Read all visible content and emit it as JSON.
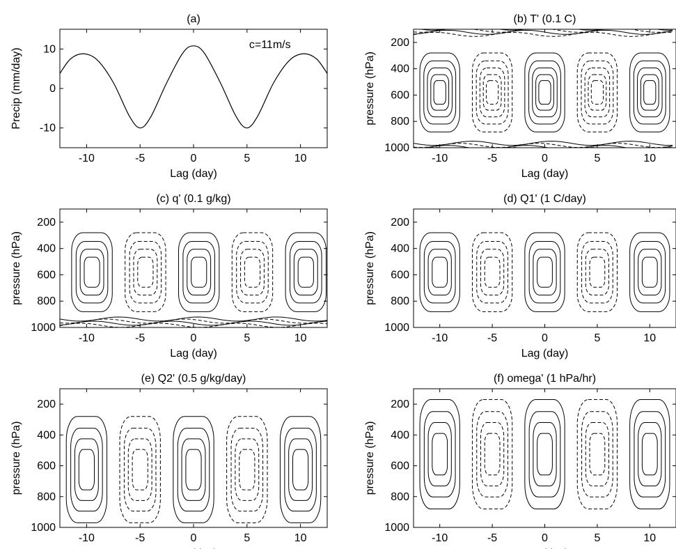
{
  "figure": {
    "panels": [
      {
        "id": "a",
        "title": "(a)"
      },
      {
        "id": "b",
        "title": "(b) T' (0.1 C)"
      },
      {
        "id": "c",
        "title": "(c) q' (0.1 g/kg)"
      },
      {
        "id": "d",
        "title": "(d) Q1' (1 C/day)"
      },
      {
        "id": "e",
        "title": "(e) Q2' (0.5 g/kg/day)"
      },
      {
        "id": "f",
        "title": "(f) omega' (1 hPa/hr)"
      }
    ]
  },
  "chart_data": [
    {
      "panel": "a",
      "type": "line",
      "title": "(a)",
      "xlabel": "Lag (day)",
      "ylabel": "Precip (mm/day)",
      "annotation": "c=11m/s",
      "xlim": [
        -12.5,
        12.5
      ],
      "ylim": [
        -15,
        15
      ],
      "xticks": [
        -10,
        -5,
        0,
        5,
        10
      ],
      "yticks": [
        -10,
        0,
        10
      ],
      "x": [
        -12.5,
        -11.5,
        -10.3,
        -9,
        -7.5,
        -6,
        -5,
        -4,
        -2.5,
        -1,
        0,
        1,
        2.5,
        4,
        5,
        6,
        7.5,
        9,
        10.3,
        11.5,
        12.5
      ],
      "y": [
        3.8,
        7.5,
        8.8,
        7.2,
        1.5,
        -7.0,
        -10.0,
        -7.2,
        1.5,
        9.0,
        10.8,
        9.0,
        1.5,
        -7.2,
        -10.0,
        -7.0,
        1.5,
        7.2,
        8.8,
        7.5,
        3.8
      ]
    },
    {
      "panel": "b",
      "type": "contour",
      "title": "(b) T' (0.1 C)",
      "variable": "T'",
      "units": "0.1 C",
      "xlabel": "Lag (day)",
      "ylabel": "pressure (hPa)",
      "xlim": [
        -12.5,
        12.5
      ],
      "ylim": [
        1000,
        100
      ],
      "xticks": [
        -10,
        -5,
        0,
        5,
        10
      ],
      "yticks": [
        200,
        400,
        600,
        800,
        1000
      ],
      "positive_centers_lag": [
        -10,
        0,
        10
      ],
      "negative_centers_lag": [
        -5,
        5
      ]
    },
    {
      "panel": "c",
      "type": "contour",
      "title": "(c) q' (0.1 g/kg)",
      "variable": "q'",
      "units": "0.1 g/kg",
      "xlabel": "Lag (day)",
      "ylabel": "pressure (hPa)",
      "xlim": [
        -12.5,
        12.5
      ],
      "ylim": [
        1000,
        100
      ],
      "xticks": [
        -10,
        -5,
        0,
        5,
        10
      ],
      "yticks": [
        200,
        400,
        600,
        800,
        1000
      ],
      "positive_centers_lag": [
        -9.5,
        0.5,
        10.5
      ],
      "negative_centers_lag": [
        -4.5,
        5.5
      ]
    },
    {
      "panel": "d",
      "type": "contour",
      "title": "(d) Q1' (1 C/day)",
      "variable": "Q1'",
      "units": "1 C/day",
      "xlabel": "Lag (day)",
      "ylabel": "pressure (hPa)",
      "xlim": [
        -12.5,
        12.5
      ],
      "ylim": [
        1000,
        100
      ],
      "xticks": [
        -10,
        -5,
        0,
        5,
        10
      ],
      "yticks": [
        200,
        400,
        600,
        800,
        1000
      ],
      "positive_centers_lag": [
        -10,
        0,
        10
      ],
      "negative_centers_lag": [
        -5,
        5
      ]
    },
    {
      "panel": "e",
      "type": "contour",
      "title": "(e) Q2' (0.5 g/kg/day)",
      "variable": "Q2'",
      "units": "0.5 g/kg/day",
      "xlabel": "Lag (day)",
      "ylabel": "pressure (hPa)",
      "xlim": [
        -12.5,
        12.5
      ],
      "ylim": [
        1000,
        100
      ],
      "xticks": [
        -10,
        -5,
        0,
        5,
        10
      ],
      "yticks": [
        200,
        400,
        600,
        800,
        1000
      ],
      "positive_centers_lag": [
        -10,
        0,
        10
      ],
      "negative_centers_lag": [
        -5,
        5
      ]
    },
    {
      "panel": "f",
      "type": "contour",
      "title": "(f) omega' (1 hPa/hr)",
      "variable": "omega'",
      "units": "1 hPa/hr",
      "xlabel": "Lag (day)",
      "ylabel": "pressure (hPa)",
      "xlim": [
        -12.5,
        12.5
      ],
      "ylim": [
        1000,
        100
      ],
      "xticks": [
        -10,
        -5,
        0,
        5,
        10
      ],
      "yticks": [
        200,
        400,
        600,
        800,
        1000
      ],
      "positive_centers_lag": [
        -10,
        0,
        10
      ],
      "negative_centers_lag": [
        -5,
        5
      ]
    }
  ]
}
